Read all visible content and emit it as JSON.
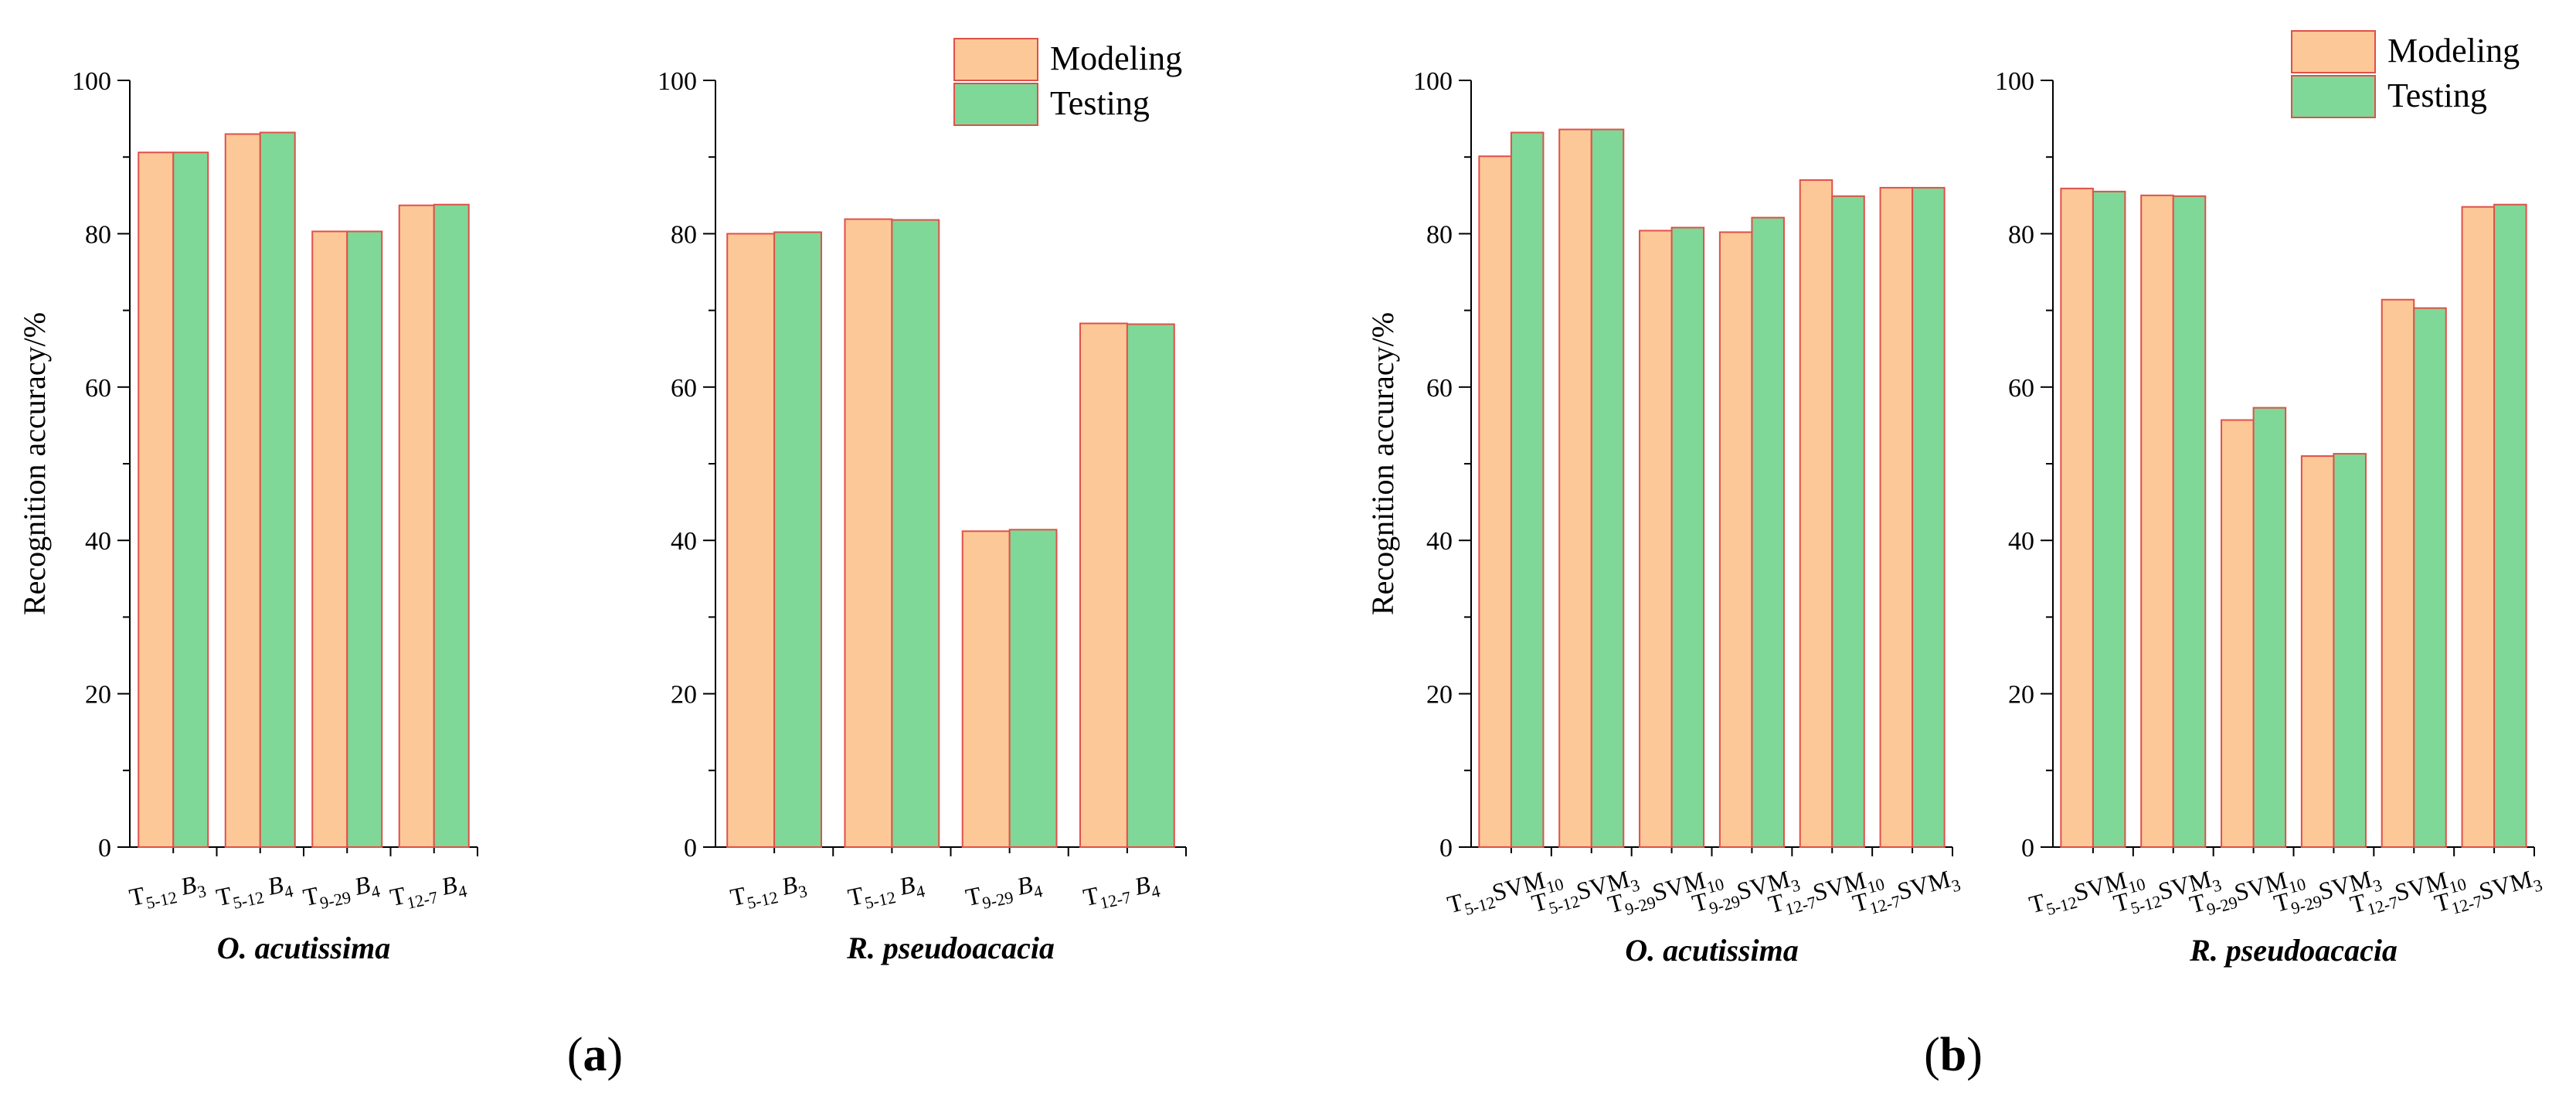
{
  "legend": {
    "modeling": "Modeling",
    "testing": "Testing"
  },
  "colors": {
    "modeling": "#FDC897",
    "testing": "#7FD897",
    "bar_edge": "#E0504A",
    "axis": "#000000"
  },
  "y_axis_label": "Recognition accuracy/%",
  "chart_data": [
    {
      "type": "bar",
      "panel": "a",
      "title": "O. acutissima",
      "ylabel": "Recognition accuracy/%",
      "ylim": [
        0,
        100
      ],
      "yticks": [
        0,
        20,
        40,
        60,
        80,
        100
      ],
      "categories": [
        "T5-12 B3",
        "T5-12 B4",
        "T9-29 B4",
        "T12-7 B4"
      ],
      "category_labels": [
        {
          "t": "T",
          "sub": "5-12",
          "b": "B",
          "bsub": "3"
        },
        {
          "t": "T",
          "sub": "5-12",
          "b": "B",
          "bsub": "4"
        },
        {
          "t": "T",
          "sub": "9-29",
          "b": "B",
          "bsub": "4"
        },
        {
          "t": "T",
          "sub": "12-7",
          "b": "B",
          "bsub": "4"
        }
      ],
      "series": [
        {
          "name": "Modeling",
          "values": [
            90.6,
            93.0,
            80.3,
            83.7
          ]
        },
        {
          "name": "Testing",
          "values": [
            90.6,
            93.2,
            80.3,
            83.8
          ]
        }
      ]
    },
    {
      "type": "bar",
      "panel": "a",
      "title": "R. pseudoacacia",
      "ylabel": "",
      "ylim": [
        0,
        100
      ],
      "yticks": [
        0,
        20,
        40,
        60,
        80,
        100
      ],
      "categories": [
        "T5-12 B3",
        "T5-12 B4",
        "T9-29 B4",
        "T12-7 B4"
      ],
      "category_labels": [
        {
          "t": "T",
          "sub": "5-12",
          "b": "B",
          "bsub": "3"
        },
        {
          "t": "T",
          "sub": "5-12",
          "b": "B",
          "bsub": "4"
        },
        {
          "t": "T",
          "sub": "9-29",
          "b": "B",
          "bsub": "4"
        },
        {
          "t": "T",
          "sub": "12-7",
          "b": "B",
          "bsub": "4"
        }
      ],
      "series": [
        {
          "name": "Modeling",
          "values": [
            80.0,
            81.9,
            41.2,
            68.3
          ]
        },
        {
          "name": "Testing",
          "values": [
            80.2,
            81.8,
            41.4,
            68.2
          ]
        }
      ],
      "legend": [
        "Modeling",
        "Testing"
      ],
      "legend_position": "top-right"
    },
    {
      "type": "bar",
      "panel": "b",
      "title": "O. acutissima",
      "ylabel": "Recognition accuracy/%",
      "ylim": [
        0,
        100
      ],
      "yticks": [
        0,
        20,
        40,
        60,
        80,
        100
      ],
      "categories": [
        "T5-12 SVM10",
        "T5-12 SVM3",
        "T9-29 SVM10",
        "T9-29 SVM3",
        "T12-7 SVM10",
        "T12-7 SVM3"
      ],
      "category_labels": [
        {
          "t": "T",
          "sub": "5-12",
          "b": "SVM",
          "bsub": "10"
        },
        {
          "t": "T",
          "sub": "5-12",
          "b": "SVM",
          "bsub": "3"
        },
        {
          "t": "T",
          "sub": "9-29",
          "b": "SVM",
          "bsub": "10"
        },
        {
          "t": "T",
          "sub": "9-29",
          "b": "SVM",
          "bsub": "3"
        },
        {
          "t": "T",
          "sub": "12-7",
          "b": "SVM",
          "bsub": "10"
        },
        {
          "t": "T",
          "sub": "12-7",
          "b": "SVM",
          "bsub": "3"
        }
      ],
      "series": [
        {
          "name": "Modeling",
          "values": [
            90.1,
            93.6,
            80.4,
            80.2,
            87.0,
            86.0
          ]
        },
        {
          "name": "Testing",
          "values": [
            93.2,
            93.6,
            80.8,
            82.1,
            84.9,
            86.0
          ]
        }
      ]
    },
    {
      "type": "bar",
      "panel": "b",
      "title": "R. pseudoacacia",
      "ylabel": "",
      "ylim": [
        0,
        100
      ],
      "yticks": [
        0,
        20,
        40,
        60,
        80,
        100
      ],
      "categories": [
        "T5-12 SVM10",
        "T5-12 SVM3",
        "T9-29 SVM10",
        "T9-29 SVM3",
        "T12-7 SVM10",
        "T12-7 SVM3"
      ],
      "category_labels": [
        {
          "t": "T",
          "sub": "5-12",
          "b": "SVM",
          "bsub": "10"
        },
        {
          "t": "T",
          "sub": "5-12",
          "b": "SVM",
          "bsub": "3"
        },
        {
          "t": "T",
          "sub": "9-29",
          "b": "SVM",
          "bsub": "10"
        },
        {
          "t": "T",
          "sub": "9-29",
          "b": "SVM",
          "bsub": "3"
        },
        {
          "t": "T",
          "sub": "12-7",
          "b": "SVM",
          "bsub": "10"
        },
        {
          "t": "T",
          "sub": "12-7",
          "b": "SVM",
          "bsub": "3"
        }
      ],
      "series": [
        {
          "name": "Modeling",
          "values": [
            85.9,
            85.0,
            55.7,
            51.0,
            71.4,
            83.5
          ]
        },
        {
          "name": "Testing",
          "values": [
            85.5,
            84.9,
            57.3,
            51.3,
            70.3,
            83.8
          ]
        }
      ],
      "legend": [
        "Modeling",
        "Testing"
      ],
      "legend_position": "top-right"
    }
  ],
  "panel_labels": [
    {
      "open": "(",
      "letter": "a",
      "close": ")"
    },
    {
      "open": "(",
      "letter": "b",
      "close": ")"
    }
  ]
}
